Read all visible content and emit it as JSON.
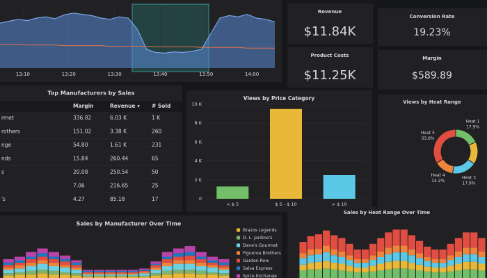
{
  "top_chart": {
    "type": "area",
    "x": [
      785,
      787,
      789,
      791,
      793,
      795,
      797,
      799,
      801,
      803,
      805,
      807,
      809,
      811,
      813,
      815,
      817,
      819,
      821,
      823,
      825,
      827,
      829,
      831,
      833,
      835,
      837,
      839,
      841,
      843,
      845
    ],
    "xlim": [
      785,
      845
    ],
    "xticks": [
      {
        "value": 790,
        "label": "13:10"
      },
      {
        "value": 800,
        "label": "13:20"
      },
      {
        "value": 810,
        "label": "13:30"
      },
      {
        "value": 820,
        "label": "13:40"
      },
      {
        "value": 830,
        "label": "13:50"
      },
      {
        "value": 840,
        "label": "14:00"
      }
    ],
    "ylim": [
      0,
      100
    ],
    "series": [
      {
        "color": "#5a8bd6",
        "values": [
          72,
          75,
          78,
          76,
          80,
          82,
          79,
          85,
          88,
          86,
          84,
          80,
          78,
          82,
          80,
          62,
          30,
          25,
          24,
          26,
          25,
          27,
          30,
          55,
          80,
          84,
          82,
          86,
          80,
          78,
          74
        ]
      },
      {
        "color": "#e0754a",
        "values": [
          38,
          38,
          38,
          37,
          37,
          37,
          37,
          36,
          36,
          36,
          36,
          36,
          35,
          35,
          35,
          35,
          35,
          34,
          34,
          34,
          34,
          34,
          33,
          33,
          33,
          33,
          33,
          32,
          32,
          32,
          32
        ]
      }
    ]
  },
  "stats": [
    {
      "label": "Revenue",
      "value": "$11.84K",
      "color": "#ffffff"
    },
    {
      "label": "Product Costs",
      "value": "$11.25K",
      "color": "#ffffff"
    },
    {
      "label": "Conversion Rate",
      "value": "19.23%",
      "color": "#73bf69"
    },
    {
      "label": "Margin",
      "value": "$589.89",
      "color": "#73bf69"
    }
  ],
  "table": {
    "title": "Top Manufacturers by Sales",
    "columns": [
      "Margin",
      "Revenue ▾",
      "# Sold"
    ],
    "rows": [
      {
        "name": "rmet",
        "cells": [
          "336.82",
          "6.03 K",
          "1 K"
        ]
      },
      {
        "name": "rothers",
        "cells": [
          "151.02",
          "3.38 K",
          "260"
        ]
      },
      {
        "name": "nge",
        "cells": [
          "54.80",
          "1.61 K",
          "231"
        ]
      },
      {
        "name": "nds",
        "cells": [
          "15.84",
          "260.44",
          "65"
        ]
      },
      {
        "name": "s",
        "cells": [
          "20.08",
          "250.54",
          "50"
        ]
      },
      {
        "cells": [
          "7.06",
          "216.65",
          "25"
        ]
      },
      {
        "name": "'s",
        "cells": [
          "4.27",
          "85.18",
          "17"
        ]
      }
    ]
  },
  "price_chart": {
    "type": "bar",
    "title": "Views by Price Category",
    "categories": [
      "< $ 5",
      "$ 5 - $ 10",
      "> $ 10"
    ],
    "values": [
      1300,
      9500,
      2500
    ],
    "colors": [
      "#73bf69",
      "#eab839",
      "#5ac8e6"
    ],
    "ylim": [
      0,
      10000
    ],
    "yticks": [
      0,
      {
        "value": 2000,
        "label": "2 K"
      },
      {
        "value": 4000,
        "label": "4 K"
      },
      {
        "value": 6000,
        "label": "6 K"
      },
      {
        "value": 8000,
        "label": "8 K"
      },
      {
        "value": 10000,
        "label": "10 K"
      }
    ],
    "grid": true
  },
  "heat_chart": {
    "type": "donut",
    "title": "Views by Heat Range",
    "series": [
      {
        "name": "Heat 1",
        "color": "#73bf69",
        "values": [
          17.9
        ],
        "value_labels": [
          "17.9%"
        ]
      },
      {
        "color": "#eab839",
        "values": [
          16.4
        ]
      },
      {
        "name": "Heat 3",
        "color": "#5ac8e6",
        "values": [
          17.9
        ],
        "value_labels": [
          "17.9%"
        ]
      },
      {
        "name": "Heat 4",
        "color": "#ef843c",
        "values": [
          14.2
        ],
        "value_labels": [
          "14.2%"
        ]
      },
      {
        "name": "Heat 5",
        "color": "#e24d42",
        "values": [
          33.6
        ],
        "value_labels": [
          "33.6%"
        ]
      }
    ]
  },
  "manufacturer_chart": {
    "type": "stacked_bar",
    "title": "Sales by Manufacturer Over Time",
    "ylim": [
      0,
      40
    ],
    "series": [
      {
        "name": "Brazos Legends",
        "color": "#eab839",
        "values": [
          2,
          3,
          3,
          4,
          3,
          3,
          2,
          1,
          1,
          1,
          1,
          1,
          1,
          2,
          3,
          4,
          4,
          3,
          3,
          2
        ]
      },
      {
        "name": "D. L. Jardine's",
        "color": "#7eb26d",
        "values": [
          2,
          2,
          3,
          3,
          3,
          2,
          2,
          1,
          1,
          1,
          1,
          1,
          1,
          2,
          3,
          3,
          3,
          3,
          2,
          2
        ]
      },
      {
        "name": "Dave's Gourmet",
        "color": "#6ed0e0",
        "values": [
          3,
          3,
          4,
          5,
          4,
          4,
          3,
          1,
          1,
          1,
          1,
          1,
          2,
          3,
          4,
          5,
          5,
          4,
          4,
          3
        ]
      },
      {
        "name": "Figueroa Brothers",
        "color": "#ef843c",
        "values": [
          2,
          3,
          3,
          3,
          3,
          2,
          2,
          1,
          1,
          1,
          1,
          1,
          1,
          2,
          3,
          3,
          3,
          3,
          2,
          2
        ]
      },
      {
        "name": "Garden Row",
        "color": "#e24d42",
        "values": [
          2,
          2,
          3,
          3,
          3,
          3,
          2,
          1,
          1,
          1,
          1,
          1,
          1,
          2,
          3,
          3,
          4,
          3,
          2,
          2
        ]
      },
      {
        "name": "Salsa Express",
        "color": "#1f78c1",
        "values": [
          2,
          2,
          2,
          3,
          2,
          2,
          2,
          1,
          1,
          1,
          1,
          1,
          1,
          1,
          2,
          3,
          3,
          2,
          2,
          2
        ]
      },
      {
        "name": "Spice Exchange",
        "color": "#ba43a9",
        "values": [
          3,
          3,
          4,
          4,
          4,
          3,
          2,
          1,
          1,
          1,
          1,
          1,
          1,
          2,
          4,
          4,
          5,
          4,
          3,
          3
        ]
      }
    ]
  },
  "heat_over_time_chart": {
    "type": "stacked_bar",
    "title": "Sales by Heat Range Over Time",
    "ylim": [
      0,
      60
    ],
    "series": [
      {
        "color": "#73bf69",
        "values": [
          8,
          9,
          9,
          10,
          9,
          8,
          7,
          6,
          6,
          7,
          8,
          9,
          10,
          10,
          9,
          8,
          7,
          6,
          6,
          7,
          8,
          9,
          9,
          8
        ]
      },
      {
        "color": "#eab839",
        "values": [
          6,
          7,
          8,
          8,
          7,
          7,
          6,
          5,
          5,
          6,
          7,
          8,
          8,
          8,
          7,
          6,
          5,
          5,
          5,
          6,
          7,
          8,
          8,
          7
        ]
      },
      {
        "color": "#5ac8e6",
        "values": [
          7,
          8,
          8,
          9,
          8,
          7,
          6,
          5,
          5,
          6,
          7,
          8,
          9,
          9,
          8,
          7,
          6,
          5,
          5,
          6,
          7,
          8,
          8,
          7
        ]
      },
      {
        "color": "#ef843c",
        "values": [
          5,
          6,
          6,
          7,
          6,
          6,
          5,
          4,
          4,
          5,
          6,
          7,
          7,
          7,
          6,
          5,
          4,
          4,
          4,
          5,
          6,
          7,
          7,
          6
        ]
      },
      {
        "color": "#e24d42",
        "values": [
          12,
          14,
          15,
          16,
          15,
          14,
          12,
          10,
          10,
          12,
          14,
          16,
          17,
          17,
          15,
          13,
          11,
          10,
          10,
          12,
          14,
          16,
          16,
          14
        ]
      }
    ]
  }
}
